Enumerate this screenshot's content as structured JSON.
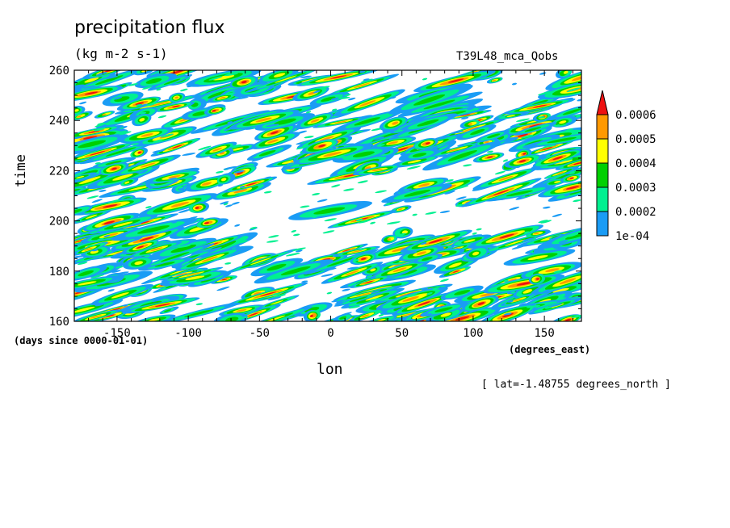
{
  "header": {
    "title": "precipitation flux",
    "units": "(kg m-2 s-1)",
    "run_name": "T39L48_mca_Qobs"
  },
  "footer": {
    "slice": "[ lat=-1.48755 degrees_north ]"
  },
  "colors": {
    "level_1": "#1a9cf5",
    "level_2": "#00f090",
    "level_3": "#00d000",
    "level_4": "#ffff00",
    "level_5": "#ff9900",
    "level_6": "#ee1111"
  },
  "chart_data": {
    "type": "heatmap",
    "xlabel": "lon",
    "ylabel": "time",
    "x_units": "(degrees_east)",
    "y_units": "(days since 0000-01-01)",
    "xlim": [
      -180,
      176
    ],
    "ylim": [
      160,
      260
    ],
    "x_ticks": [
      -150,
      -100,
      -50,
      0,
      50,
      100,
      150
    ],
    "y_ticks": [
      160,
      180,
      200,
      220,
      240,
      260
    ],
    "colorbar": {
      "levels": [
        0.0001,
        0.0002,
        0.0003,
        0.0004,
        0.0005,
        0.0006
      ],
      "labels": [
        "1e-04",
        "0.0002",
        "0.0003",
        "0.0004",
        "0.0005",
        "0.0006"
      ],
      "extend": "max"
    },
    "grid": false,
    "pattern": "eastward-propagating precipitation streaks tilted toward later time at larger longitude"
  }
}
